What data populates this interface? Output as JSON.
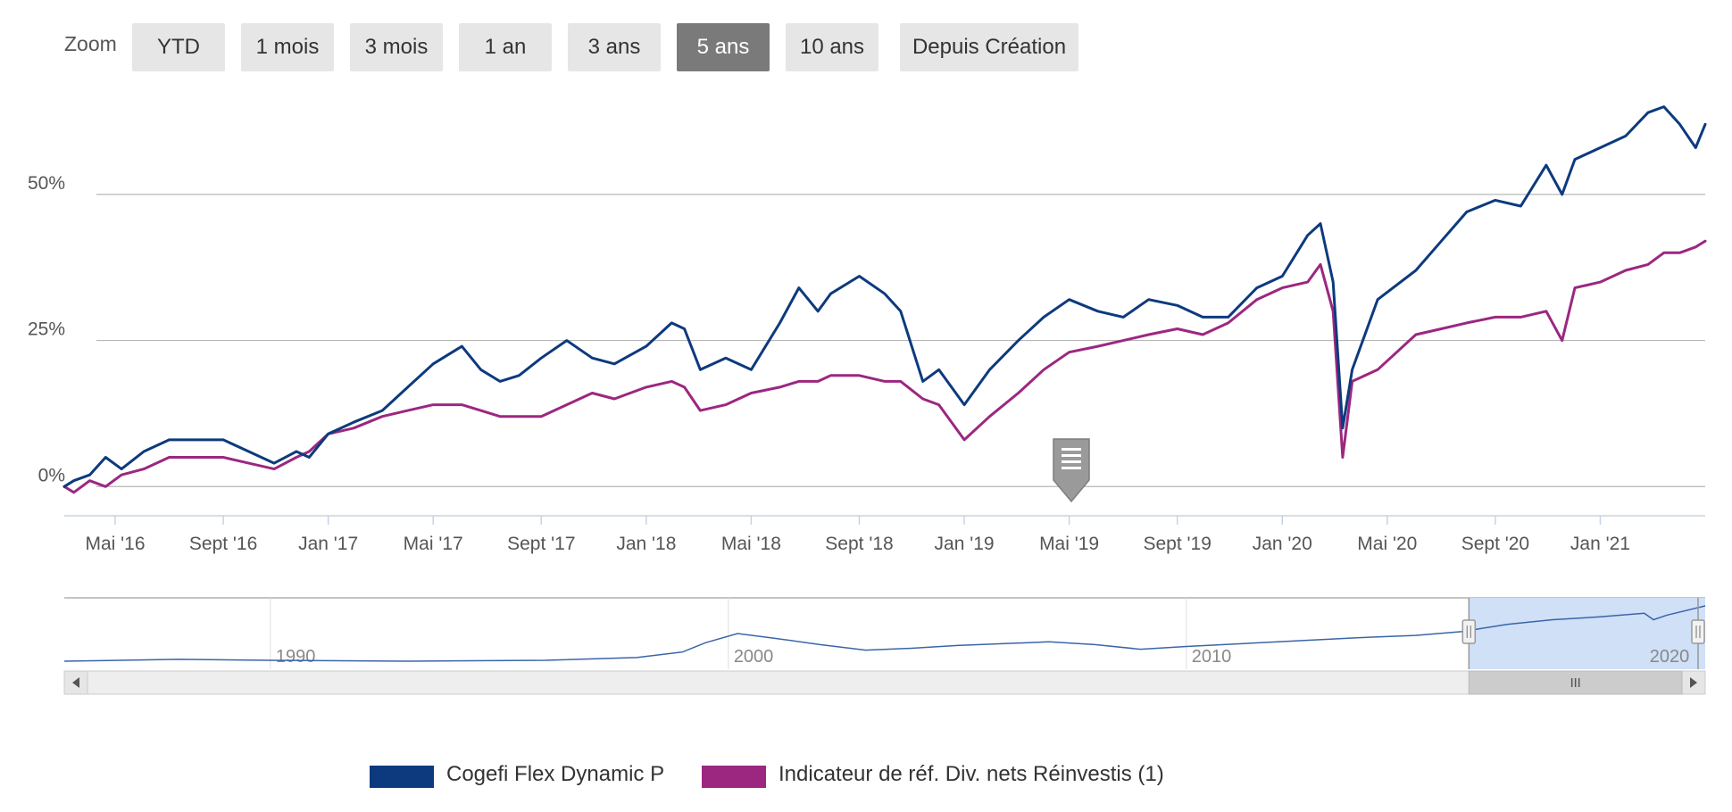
{
  "zoom": {
    "label": "Zoom",
    "buttons": [
      {
        "label": "YTD",
        "active": false
      },
      {
        "label": "1 mois",
        "active": false
      },
      {
        "label": "3 mois",
        "active": false
      },
      {
        "label": "1 an",
        "active": false
      },
      {
        "label": "3 ans",
        "active": false
      },
      {
        "label": "5 ans",
        "active": true
      },
      {
        "label": "10 ans",
        "active": false
      },
      {
        "label": "Depuis Création",
        "active": false
      }
    ]
  },
  "colors": {
    "fund": "#0d3a7e",
    "benchmark": "#9c2780",
    "navigator_line": "#3a65a8",
    "navigator_selection": "#cfe0f7",
    "zoom_active": "#7a7a7a",
    "zoom_inactive": "#e6e6e6"
  },
  "chart_data": {
    "type": "line",
    "title": "",
    "xlabel": "",
    "ylabel": "",
    "x_range": [
      2016.17,
      2021.33
    ],
    "ylim": [
      -5,
      68
    ],
    "y_ticks": [
      {
        "value": 0,
        "label": "0%"
      },
      {
        "value": 25,
        "label": "25%"
      },
      {
        "value": 50,
        "label": "50%"
      }
    ],
    "x_ticks": [
      {
        "value": 2016.33,
        "label": "Mai '16"
      },
      {
        "value": 2016.67,
        "label": "Sept '16"
      },
      {
        "value": 2017.0,
        "label": "Jan '17"
      },
      {
        "value": 2017.33,
        "label": "Mai '17"
      },
      {
        "value": 2017.67,
        "label": "Sept '17"
      },
      {
        "value": 2018.0,
        "label": "Jan '18"
      },
      {
        "value": 2018.33,
        "label": "Mai '18"
      },
      {
        "value": 2018.67,
        "label": "Sept '18"
      },
      {
        "value": 2019.0,
        "label": "Jan '19"
      },
      {
        "value": 2019.33,
        "label": "Mai '19"
      },
      {
        "value": 2019.67,
        "label": "Sept '19"
      },
      {
        "value": 2020.0,
        "label": "Jan '20"
      },
      {
        "value": 2020.33,
        "label": "Mai '20"
      },
      {
        "value": 2020.67,
        "label": "Sept '20"
      },
      {
        "value": 2021.0,
        "label": "Jan '21"
      }
    ],
    "series": [
      {
        "name": "Cogefi Flex Dynamic P",
        "x": [
          2016.17,
          2016.2,
          2016.25,
          2016.3,
          2016.35,
          2016.42,
          2016.5,
          2016.58,
          2016.67,
          2016.75,
          2016.83,
          2016.9,
          2016.94,
          2017.0,
          2017.08,
          2017.17,
          2017.25,
          2017.33,
          2017.42,
          2017.48,
          2017.54,
          2017.6,
          2017.67,
          2017.75,
          2017.83,
          2017.9,
          2018.0,
          2018.08,
          2018.12,
          2018.17,
          2018.25,
          2018.33,
          2018.42,
          2018.48,
          2018.54,
          2018.58,
          2018.67,
          2018.75,
          2018.8,
          2018.87,
          2018.92,
          2019.0,
          2019.08,
          2019.17,
          2019.25,
          2019.33,
          2019.42,
          2019.5,
          2019.58,
          2019.67,
          2019.75,
          2019.83,
          2019.92,
          2020.0,
          2020.08,
          2020.12,
          2020.16,
          2020.19,
          2020.22,
          2020.3,
          2020.42,
          2020.5,
          2020.58,
          2020.67,
          2020.75,
          2020.83,
          2020.88,
          2020.92,
          2021.0,
          2021.08,
          2021.15,
          2021.2,
          2021.25,
          2021.3,
          2021.33
        ],
        "values": [
          0,
          1,
          2,
          5,
          3,
          6,
          8,
          8,
          8,
          6,
          4,
          6,
          5,
          9,
          11,
          13,
          17,
          21,
          24,
          20,
          18,
          19,
          22,
          25,
          22,
          21,
          24,
          28,
          27,
          20,
          22,
          20,
          28,
          34,
          30,
          33,
          36,
          33,
          30,
          18,
          20,
          14,
          20,
          25,
          29,
          32,
          30,
          29,
          32,
          31,
          29,
          29,
          34,
          36,
          43,
          45,
          35,
          10,
          20,
          32,
          37,
          42,
          47,
          49,
          48,
          55,
          50,
          56,
          58,
          60,
          64,
          65,
          62,
          58,
          62
        ]
      },
      {
        "name": "Indicateur de réf. Div. nets Réinvestis (1)",
        "x": [
          2016.17,
          2016.2,
          2016.25,
          2016.3,
          2016.35,
          2016.42,
          2016.5,
          2016.58,
          2016.67,
          2016.75,
          2016.83,
          2016.9,
          2016.94,
          2017.0,
          2017.08,
          2017.17,
          2017.25,
          2017.33,
          2017.42,
          2017.48,
          2017.54,
          2017.6,
          2017.67,
          2017.75,
          2017.83,
          2017.9,
          2018.0,
          2018.08,
          2018.12,
          2018.17,
          2018.25,
          2018.33,
          2018.42,
          2018.48,
          2018.54,
          2018.58,
          2018.67,
          2018.75,
          2018.8,
          2018.87,
          2018.92,
          2019.0,
          2019.08,
          2019.17,
          2019.25,
          2019.33,
          2019.42,
          2019.5,
          2019.58,
          2019.67,
          2019.75,
          2019.83,
          2019.92,
          2020.0,
          2020.08,
          2020.12,
          2020.16,
          2020.19,
          2020.22,
          2020.3,
          2020.42,
          2020.5,
          2020.58,
          2020.67,
          2020.75,
          2020.83,
          2020.88,
          2020.92,
          2021.0,
          2021.08,
          2021.15,
          2021.2,
          2021.25,
          2021.3,
          2021.33
        ],
        "values": [
          0,
          -1,
          1,
          0,
          2,
          3,
          5,
          5,
          5,
          4,
          3,
          5,
          6,
          9,
          10,
          12,
          13,
          14,
          14,
          13,
          12,
          12,
          12,
          14,
          16,
          15,
          17,
          18,
          17,
          13,
          14,
          16,
          17,
          18,
          18,
          19,
          19,
          18,
          18,
          15,
          14,
          8,
          12,
          16,
          20,
          23,
          24,
          25,
          26,
          27,
          26,
          28,
          32,
          34,
          35,
          38,
          30,
          5,
          18,
          20,
          26,
          27,
          28,
          29,
          29,
          30,
          25,
          34,
          35,
          37,
          38,
          40,
          40,
          41,
          42
        ]
      }
    ],
    "navigator": {
      "x_labels": [
        {
          "value": 1990,
          "label": "1990"
        },
        {
          "value": 2000,
          "label": "2000"
        },
        {
          "value": 2010,
          "label": "2010"
        },
        {
          "value": 2020,
          "label": "2020"
        }
      ],
      "x_range": [
        1985.5,
        2021.33
      ],
      "selection": [
        2016.17,
        2021.33
      ],
      "x": [
        1985.5,
        1988,
        1990,
        1993,
        1996,
        1998,
        1999,
        1999.5,
        2000.2,
        2001,
        2002,
        2003,
        2004,
        2005,
        2007,
        2008,
        2009,
        2010,
        2012,
        2014,
        2015,
        2016,
        2017,
        2018,
        2019,
        2020,
        2020.2,
        2020.5,
        2021.33
      ],
      "values": [
        100,
        102,
        101,
        100,
        101,
        104,
        110,
        120,
        130,
        125,
        118,
        112,
        114,
        117,
        121,
        118,
        113,
        116,
        121,
        126,
        128,
        132,
        140,
        145,
        148,
        152,
        145,
        150,
        160
      ]
    }
  }
}
